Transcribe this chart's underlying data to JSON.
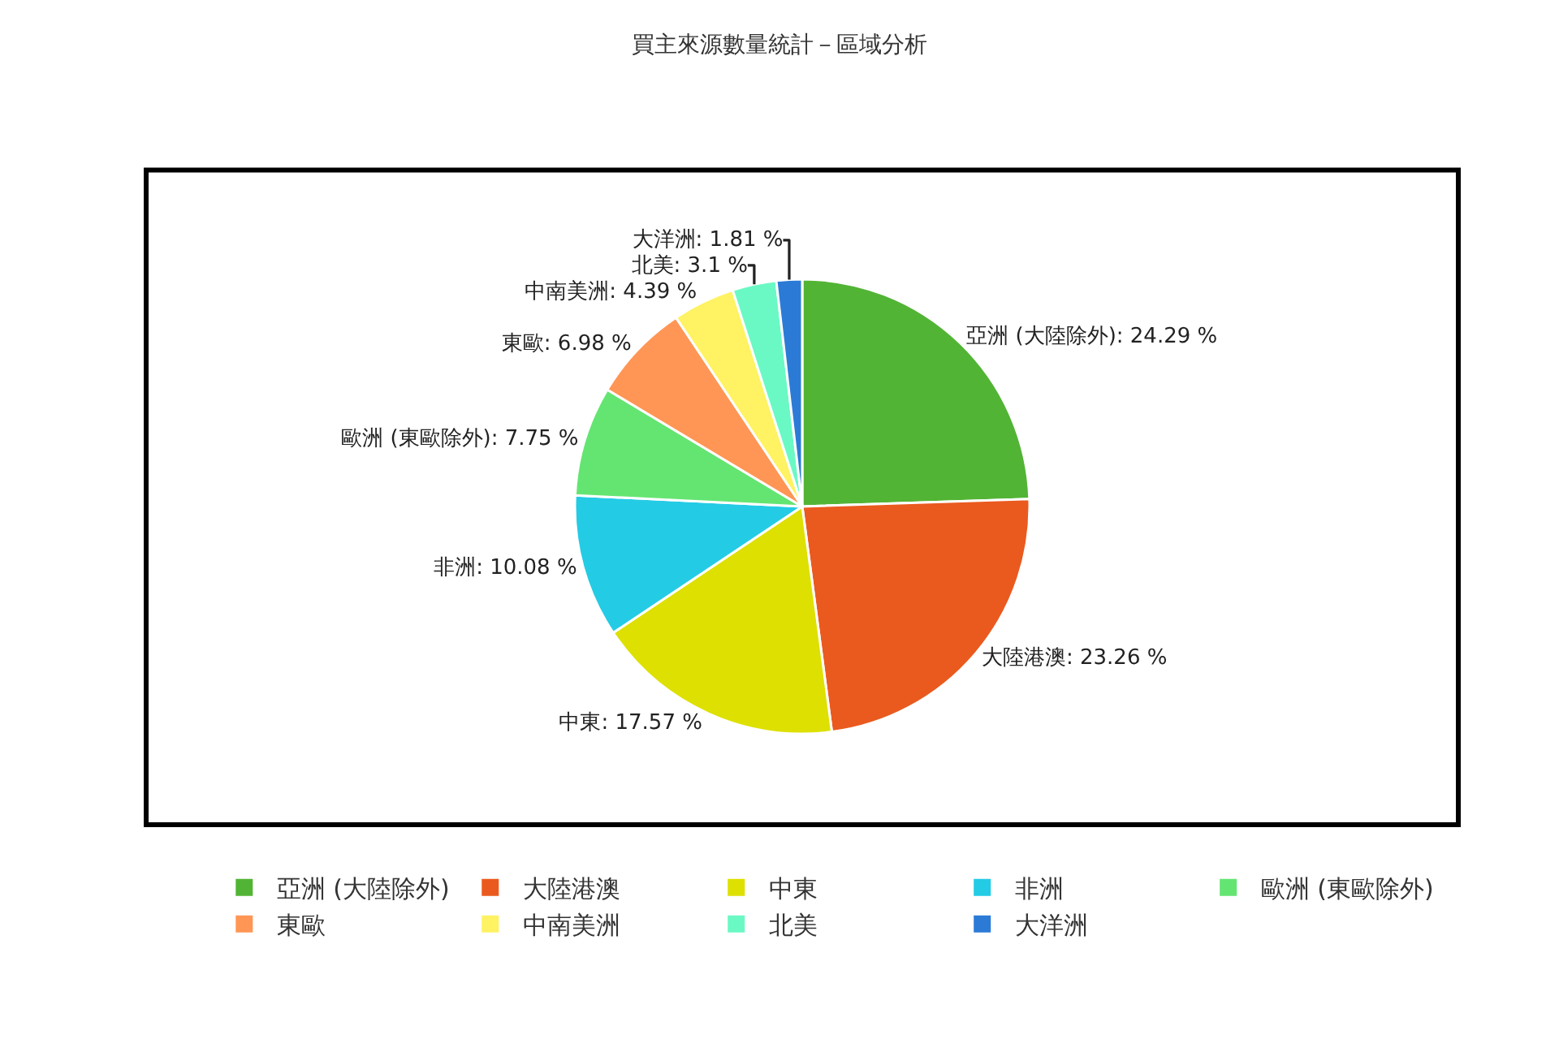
{
  "chart_data": {
    "type": "pie",
    "title": "買主來源數量統計－區域分析",
    "categories": [
      "亞洲 (大陸除外)",
      "大陸港澳",
      "中東",
      "非洲",
      "歐洲 (東歐除外)",
      "東歐",
      "中南美洲",
      "北美",
      "大洋洲"
    ],
    "values": [
      24.29,
      23.26,
      17.57,
      10.08,
      7.75,
      6.98,
      4.39,
      3.1,
      1.81
    ],
    "value_labels": [
      "亞洲 (大陸除外): 24.29 %",
      "大陸港澳: 23.26 %",
      "中東: 17.57 %",
      "非洲: 10.08 %",
      "歐洲 (東歐除外): 7.75 %",
      "東歐: 6.98 %",
      "中南美洲: 4.39 %",
      "北美: 3.1 %",
      "大洋洲: 1.81 %"
    ],
    "colors": [
      "#52b435",
      "#ea5a1e",
      "#dde000",
      "#24cbe5",
      "#64e572",
      "#ff9655",
      "#fff263",
      "#6af9c4",
      "#2b7bd6"
    ],
    "legend": "bottom"
  }
}
